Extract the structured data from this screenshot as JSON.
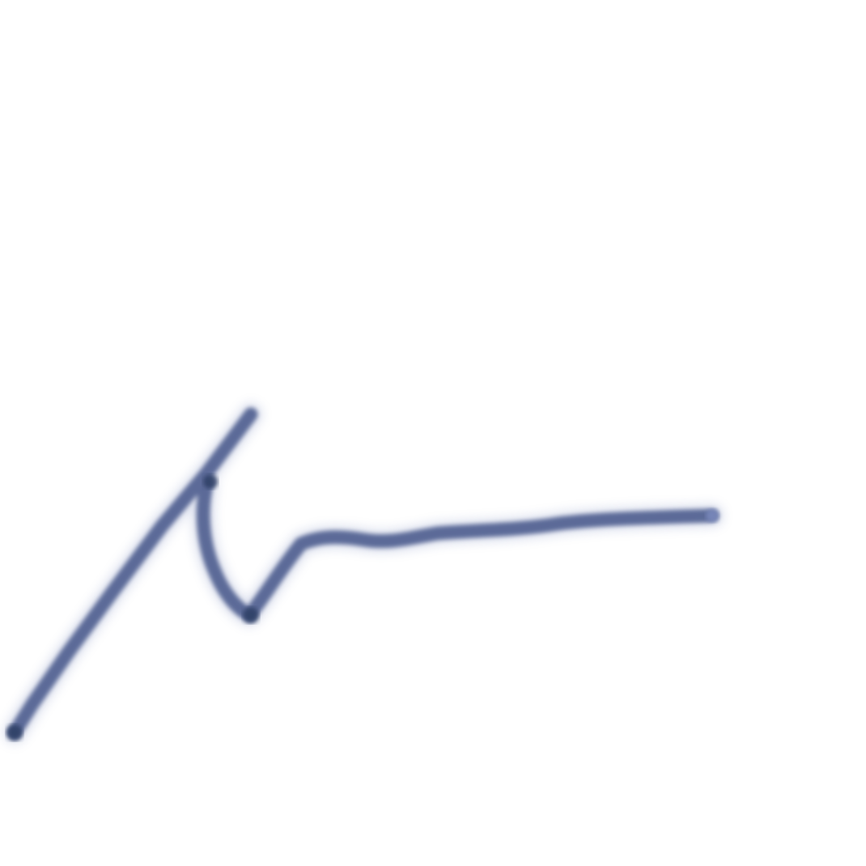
{
  "background_color": "#ffffff",
  "ink": {
    "core_color": "#5c6a98",
    "halo_color": "#7d8cc0",
    "dark_color": "#2f3f66"
  }
}
